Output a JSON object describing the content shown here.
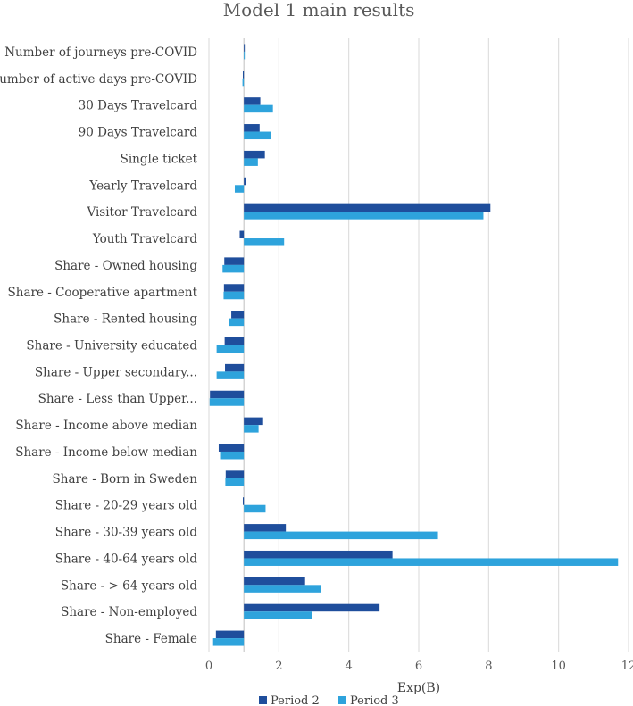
{
  "chart_data": {
    "type": "bar",
    "orientation": "horizontal",
    "title": "Model 1 main results",
    "xlabel": "Exp(B)",
    "ylabel": "",
    "xlim": [
      0,
      12
    ],
    "x_ticks": [
      0,
      2,
      4,
      6,
      8,
      10,
      12
    ],
    "reference_line": 1,
    "grid": "vertical",
    "legend_position": "bottom",
    "colors": {
      "Period 2": "#1f4e9c",
      "Period 3": "#2ea3dc"
    },
    "categories": [
      "Number of journeys pre-COVID",
      "Number of active days pre-COVID",
      "30 Days Travelcard",
      "90 Days Travelcard",
      "Single ticket",
      "Yearly Travelcard",
      "Visitor Travelcard",
      "Youth Travelcard",
      "Share - Owned housing",
      "Share - Cooperative apartment",
      "Share - Rented housing",
      "Share - University educated",
      "Share - Upper secondary...",
      "Share - Less than Upper...",
      "Share - Income above median",
      "Share - Income below median",
      "Share - Born in Sweden",
      "Share - 20-29 years old",
      "Share - 30-39 years old",
      "Share - 40-64 years old",
      "Share - > 64 years old",
      "Share - Non-employed",
      "Share - Female"
    ],
    "series": [
      {
        "name": "Period 2",
        "values": [
          1.0,
          0.97,
          1.47,
          1.45,
          1.6,
          1.05,
          8.05,
          0.88,
          0.44,
          0.43,
          0.64,
          0.45,
          0.46,
          0.03,
          1.55,
          0.28,
          0.48,
          0.97,
          2.2,
          5.25,
          2.75,
          4.88,
          0.2
        ]
      },
      {
        "name": "Period 3",
        "values": [
          1.0,
          0.96,
          1.83,
          1.78,
          1.4,
          0.74,
          7.85,
          2.15,
          0.39,
          0.42,
          0.58,
          0.22,
          0.22,
          0.02,
          1.42,
          0.32,
          0.47,
          1.62,
          6.55,
          11.7,
          3.2,
          2.95,
          0.12
        ]
      }
    ]
  }
}
